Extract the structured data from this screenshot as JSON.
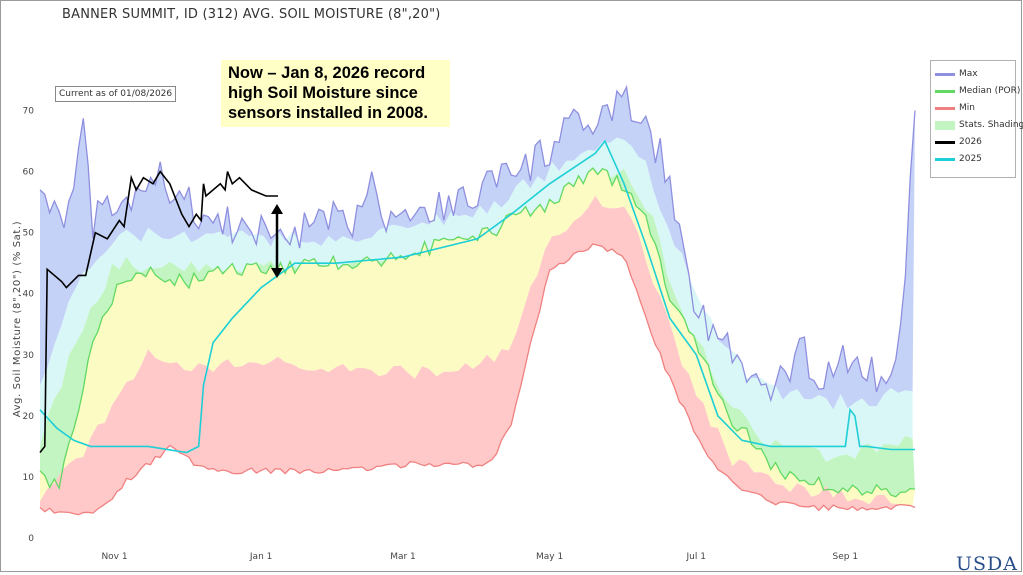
{
  "chart_data": {
    "type": "area",
    "title": "BANNER SUMMIT, ID (312) AVG. SOIL MOISTURE (8\",20\")",
    "ylabel": "Avg. Soil Moisture (8\",20\") (% Sat.)",
    "xlabel": "",
    "ylim": [
      0,
      75
    ],
    "yticks": [
      "0",
      "10",
      "20",
      "30",
      "40",
      "50",
      "60",
      "70"
    ],
    "x_range": [
      "2025-10-01",
      "2026-09-30"
    ],
    "xticks": [
      {
        "date": "2025-11-01",
        "label": "Nov 1"
      },
      {
        "date": "2026-01-01",
        "label": "Jan 1"
      },
      {
        "date": "2026-03-01",
        "label": "Mar 1"
      },
      {
        "date": "2026-05-01",
        "label": "May 1"
      },
      {
        "date": "2026-07-01",
        "label": "Jul 1"
      },
      {
        "date": "2026-09-01",
        "label": "Sep 1"
      }
    ],
    "grid": false,
    "legend_position": "top-right",
    "current_label": "Current as of 01/08/2026",
    "annotation": "Now – Jan 8,  2026 record high Soil Moisture since sensors installed in 2008.",
    "colors": {
      "max": "#8f8fe0",
      "median": "#62d962",
      "min": "#f08080",
      "y2026": "#000000",
      "y2025": "#1ecfd6",
      "shade_max_to_p90": "#c5d2f7",
      "shade_p90_to_p70": "#d9f7f7",
      "shade_p70_to_p50": "#c3f5c3",
      "shade_p50_to_p30": "#fbfbc3",
      "shade_p30_to_min": "#ffc9c9"
    },
    "series": [
      {
        "name": "Max",
        "dates": [
          "2025-10-01",
          "2025-10-08",
          "2025-10-15",
          "2025-10-18",
          "2025-10-23",
          "2025-11-01",
          "2025-11-12",
          "2025-11-20",
          "2025-12-01",
          "2025-12-10",
          "2025-12-20",
          "2026-01-01",
          "2026-01-15",
          "2026-02-01",
          "2026-02-10",
          "2026-02-15",
          "2026-02-22",
          "2026-03-01",
          "2026-03-15",
          "2026-04-01",
          "2026-04-10",
          "2026-04-15",
          "2026-05-01",
          "2026-05-10",
          "2026-05-20",
          "2026-06-01",
          "2026-06-10",
          "2026-06-20",
          "2026-07-01",
          "2026-07-10",
          "2026-07-20",
          "2026-08-01",
          "2026-08-15",
          "2026-08-20",
          "2026-09-01",
          "2026-09-10",
          "2026-09-20",
          "2026-09-25",
          "2026-09-30"
        ],
        "values": [
          57,
          53,
          55,
          69,
          52,
          54,
          56,
          59,
          55,
          52,
          51,
          50,
          50,
          52,
          52,
          61,
          53,
          54,
          54,
          56,
          61,
          58,
          64,
          67,
          68,
          71,
          69,
          58,
          38,
          33,
          28,
          23,
          31,
          25,
          30,
          27,
          25,
          38,
          70
        ]
      },
      {
        "name": "Stats P90",
        "dates": [
          "2025-10-01",
          "2025-10-15",
          "2025-11-01",
          "2025-12-01",
          "2026-01-01",
          "2026-02-01",
          "2026-03-01",
          "2026-04-01",
          "2026-05-01",
          "2026-05-20",
          "2026-06-01",
          "2026-06-10",
          "2026-06-20",
          "2026-07-01",
          "2026-07-15",
          "2026-08-01",
          "2026-09-01",
          "2026-09-30"
        ],
        "values": [
          25,
          40,
          50,
          49,
          49,
          49,
          51,
          53,
          60,
          64,
          65,
          61,
          51,
          39,
          30,
          24,
          22,
          24
        ]
      },
      {
        "name": "Stats P70",
        "dates": [
          "2025-10-01",
          "2025-10-15",
          "2025-11-01",
          "2025-12-01",
          "2026-01-01",
          "2026-02-01",
          "2026-03-01",
          "2026-04-01",
          "2026-05-01",
          "2026-05-20",
          "2026-06-01",
          "2026-06-10",
          "2026-06-20",
          "2026-07-01",
          "2026-07-15",
          "2026-08-01",
          "2026-09-01",
          "2026-09-30"
        ],
        "values": [
          15,
          32,
          45,
          44,
          44,
          44,
          45,
          47,
          54,
          59,
          61,
          55,
          43,
          32,
          22,
          15,
          13,
          17
        ]
      },
      {
        "name": "Median (POR)",
        "dates": [
          "2025-10-01",
          "2025-10-08",
          "2025-10-15",
          "2025-10-22",
          "2025-11-01",
          "2025-11-15",
          "2025-12-01",
          "2025-12-15",
          "2026-01-01",
          "2026-02-01",
          "2026-03-01",
          "2026-03-15",
          "2026-04-01",
          "2026-04-15",
          "2026-05-01",
          "2026-05-20",
          "2026-06-01",
          "2026-06-10",
          "2026-06-20",
          "2026-07-01",
          "2026-07-15",
          "2026-08-01",
          "2026-08-15",
          "2026-09-01",
          "2026-09-15",
          "2026-09-30"
        ],
        "values": [
          11,
          8,
          18,
          30,
          40,
          44,
          42,
          44,
          44,
          45,
          46,
          48,
          49,
          52,
          55,
          60,
          58,
          52,
          40,
          32,
          20,
          12,
          9,
          8,
          8,
          8
        ]
      },
      {
        "name": "Stats P30",
        "dates": [
          "2025-10-01",
          "2025-10-15",
          "2025-11-01",
          "2025-11-15",
          "2025-12-01",
          "2026-01-01",
          "2026-02-01",
          "2026-03-01",
          "2026-04-01",
          "2026-04-15",
          "2026-05-01",
          "2026-05-20",
          "2026-06-01",
          "2026-06-10",
          "2026-06-20",
          "2026-07-01",
          "2026-07-15",
          "2026-08-01",
          "2026-09-01",
          "2026-09-30"
        ],
        "values": [
          6,
          12,
          22,
          30,
          28,
          29,
          28,
          27,
          28,
          32,
          48,
          55,
          54,
          46,
          34,
          24,
          13,
          9,
          7,
          6
        ]
      },
      {
        "name": "Min",
        "dates": [
          "2025-10-01",
          "2025-10-10",
          "2025-10-20",
          "2025-10-28",
          "2025-11-05",
          "2025-11-15",
          "2025-11-25",
          "2025-12-05",
          "2025-12-15",
          "2026-01-01",
          "2026-02-01",
          "2026-03-01",
          "2026-04-01",
          "2026-04-08",
          "2026-04-15",
          "2026-04-22",
          "2026-05-01",
          "2026-05-10",
          "2026-05-20",
          "2026-06-01",
          "2026-06-10",
          "2026-06-20",
          "2026-07-01",
          "2026-07-10",
          "2026-07-20",
          "2026-08-01",
          "2026-08-15",
          "2026-09-01",
          "2026-09-15",
          "2026-09-30"
        ],
        "values": [
          5,
          4,
          4,
          5,
          9,
          12,
          15,
          12,
          11,
          11,
          11,
          12,
          12,
          13,
          19,
          30,
          44,
          46,
          48,
          46,
          36,
          26,
          17,
          11,
          8,
          6,
          5,
          5,
          5,
          5
        ]
      },
      {
        "name": "2026",
        "dates": [
          "2025-10-01",
          "2025-10-03",
          "2025-10-04",
          "2025-10-10",
          "2025-10-12",
          "2025-10-17",
          "2025-10-20",
          "2025-10-24",
          "2025-10-29",
          "2025-11-03",
          "2025-11-05",
          "2025-11-08",
          "2025-11-10",
          "2025-11-13",
          "2025-11-17",
          "2025-11-20",
          "2025-11-24",
          "2025-11-26",
          "2025-11-29",
          "2025-12-02",
          "2025-12-05",
          "2025-12-07",
          "2025-12-08",
          "2025-12-09",
          "2025-12-15",
          "2025-12-17",
          "2025-12-18",
          "2025-12-20",
          "2025-12-23",
          "2025-12-28",
          "2026-01-03",
          "2026-01-08"
        ],
        "values": [
          14,
          15,
          44,
          42,
          41,
          43,
          43,
          50,
          49,
          52,
          51,
          59,
          57,
          59,
          58,
          60,
          58,
          56,
          53,
          51,
          53,
          52,
          58,
          56,
          58,
          57,
          60,
          58,
          59,
          57,
          56,
          56
        ]
      },
      {
        "name": "2025",
        "dates": [
          "2025-10-01",
          "2025-10-08",
          "2025-10-15",
          "2025-10-22",
          "2025-11-01",
          "2025-11-15",
          "2025-12-01",
          "2025-12-06",
          "2025-12-08",
          "2025-12-12",
          "2025-12-20",
          "2026-01-01",
          "2026-01-15",
          "2026-02-01",
          "2026-03-01",
          "2026-04-01",
          "2026-04-15",
          "2026-05-01",
          "2026-05-20",
          "2026-05-24",
          "2026-06-01",
          "2026-06-10",
          "2026-06-20",
          "2026-07-01",
          "2026-07-10",
          "2026-07-20",
          "2026-08-01",
          "2026-08-15",
          "2026-09-01",
          "2026-09-03",
          "2026-09-05",
          "2026-09-07",
          "2026-09-10",
          "2026-09-20",
          "2026-09-30"
        ],
        "values": [
          21,
          18,
          16,
          15,
          15,
          15,
          14,
          15,
          25,
          32,
          36,
          41,
          45,
          45,
          46,
          49,
          53,
          58,
          63,
          65,
          58,
          48,
          36,
          30,
          20,
          16,
          15,
          15,
          15,
          21,
          20,
          15,
          15,
          14.5,
          14.5
        ]
      }
    ]
  },
  "legend": [
    {
      "label": "Max",
      "key": "max",
      "box": false
    },
    {
      "label": "Median (POR)",
      "key": "median",
      "box": false
    },
    {
      "label": "Min",
      "key": "min",
      "box": false
    },
    {
      "label": "Stats. Shading",
      "key": "shade_p70_to_p50",
      "box": true
    },
    {
      "label": "2026",
      "key": "y2026",
      "box": false
    },
    {
      "label": "2025",
      "key": "y2025",
      "box": false
    }
  ],
  "logo_text": "USDA"
}
